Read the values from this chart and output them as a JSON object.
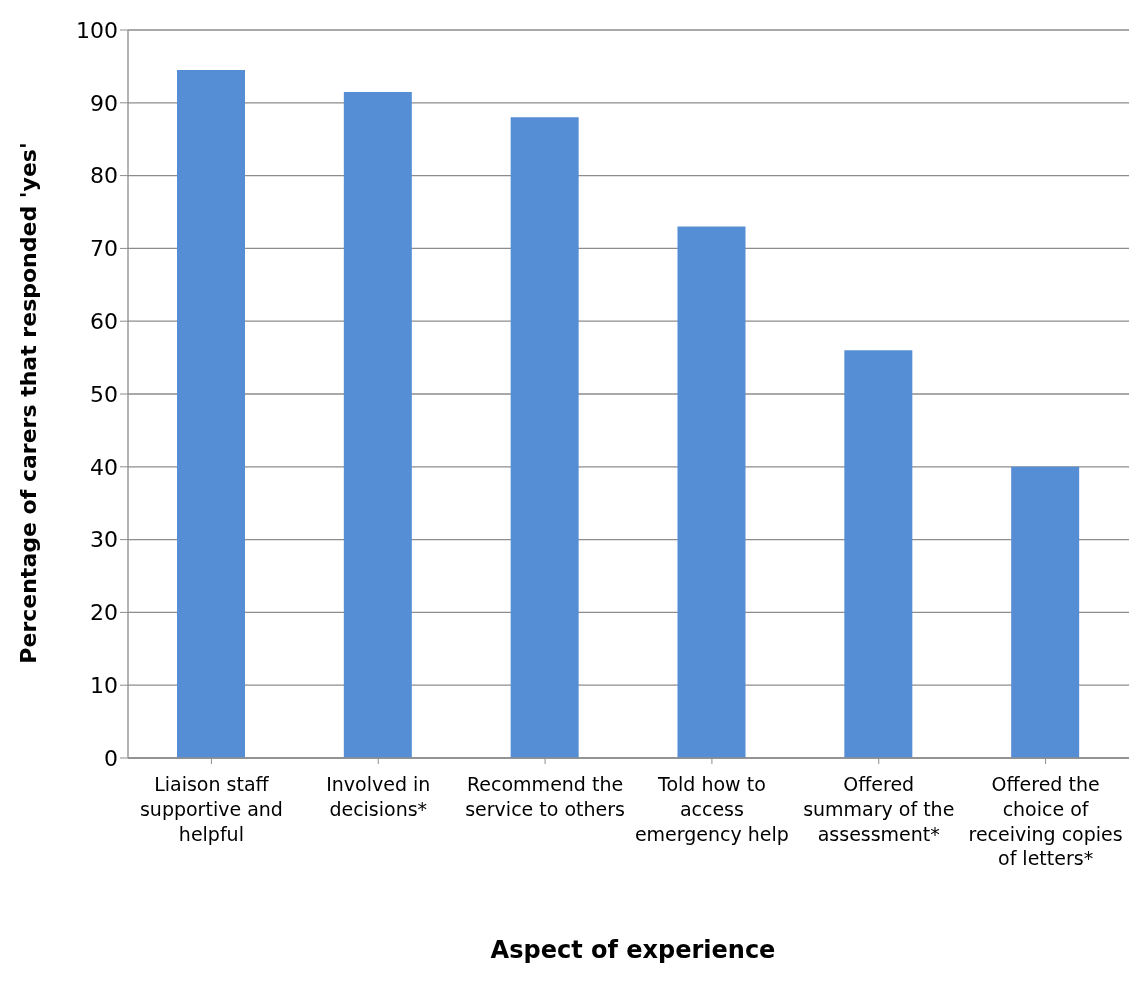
{
  "chart_data": {
    "type": "bar",
    "xlabel": "Aspect of experience",
    "ylabel": "Percentage of carers that responded 'yes'",
    "categories": [
      "Liaison staff supportive and helpful",
      "Involved in decisions*",
      "Recommend the service to others",
      "Told how to access emergency help",
      "Offered summary of the assessment*",
      "Offered the choice of receiving copies of letters*"
    ],
    "values": [
      94.5,
      91.5,
      88,
      73,
      56,
      40
    ],
    "color": "#558ed5",
    "ylim": [
      0,
      100
    ],
    "yticks": [
      0,
      10,
      20,
      30,
      40,
      50,
      60,
      70,
      80,
      90,
      100
    ],
    "grid": "y",
    "legend": false
  }
}
